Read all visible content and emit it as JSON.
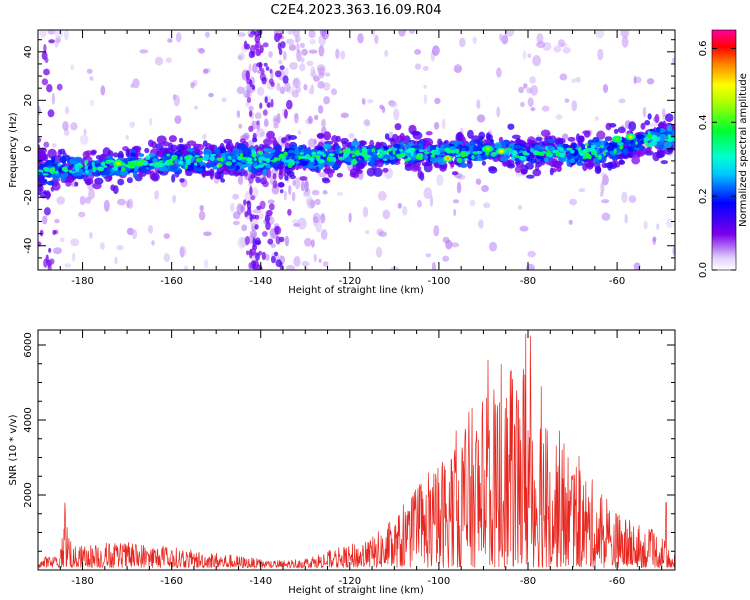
{
  "title": "C2E4.2023.363.16.09.R04",
  "colors": {
    "snr_line": "#e8261f",
    "axis": "#000000"
  },
  "chart_data": [
    {
      "type": "heatmap",
      "xlabel": "Height of straight line (km)",
      "ylabel": "Frequency (Hz)",
      "xlim": [
        -190,
        -47
      ],
      "ylim": [
        -50,
        49
      ],
      "xticks": [
        -180,
        -160,
        -140,
        -120,
        -100,
        -80,
        -60
      ],
      "yticks": [
        -40,
        -20,
        0,
        20,
        40
      ],
      "colorbar": {
        "label": "Normalized spectral amplitude",
        "range": [
          0.0,
          0.65
        ],
        "ticks": [
          0.0,
          0.2,
          0.4,
          0.6
        ],
        "colormap": "rainbow (white-violet-blue-cyan-green-yellow-red-magenta)"
      },
      "band_center_hz": [
        [
          -190,
          -9
        ],
        [
          -180,
          -8
        ],
        [
          -170,
          -7
        ],
        [
          -160,
          -5
        ],
        [
          -150,
          -5
        ],
        [
          -140,
          -4
        ],
        [
          -130,
          -4
        ],
        [
          -120,
          -3
        ],
        [
          -110,
          -2
        ],
        [
          -100,
          -2
        ],
        [
          -90,
          -1
        ],
        [
          -80,
          -2
        ],
        [
          -70,
          -2
        ],
        [
          -60,
          0
        ],
        [
          -50,
          5
        ]
      ],
      "peaks": [
        {
          "x": -172,
          "y": -6,
          "v": 0.48
        },
        {
          "x": -98,
          "y": -4,
          "v": 0.55
        },
        {
          "x": -89,
          "y": 0,
          "v": 0.45
        },
        {
          "x": -86,
          "y": -1,
          "v": 0.5
        },
        {
          "x": -60,
          "y": 4,
          "v": 0.42
        },
        {
          "x": -57,
          "y": 5,
          "v": 0.48
        }
      ]
    },
    {
      "type": "line",
      "xlabel": "Height of straight line (km)",
      "ylabel": "SNR (10 * v/v)",
      "xlim": [
        -190,
        -47
      ],
      "ylim": [
        0,
        6400
      ],
      "xticks": [
        -180,
        -160,
        -140,
        -120,
        -100,
        -80,
        -60
      ],
      "yticks": [
        2000,
        4000,
        6000
      ],
      "envelope": [
        [
          -190,
          300
        ],
        [
          -185,
          400
        ],
        [
          -184,
          1800
        ],
        [
          -182,
          600
        ],
        [
          -175,
          750
        ],
        [
          -165,
          700
        ],
        [
          -160,
          600
        ],
        [
          -155,
          500
        ],
        [
          -150,
          450
        ],
        [
          -145,
          350
        ],
        [
          -140,
          250
        ],
        [
          -135,
          220
        ],
        [
          -130,
          300
        ],
        [
          -125,
          500
        ],
        [
          -120,
          650
        ],
        [
          -115,
          900
        ],
        [
          -110,
          1400
        ],
        [
          -105,
          2300
        ],
        [
          -100,
          3000
        ],
        [
          -95,
          4200
        ],
        [
          -90,
          4900
        ],
        [
          -85,
          5300
        ],
        [
          -82,
          5900
        ],
        [
          -80,
          6300
        ],
        [
          -78,
          5300
        ],
        [
          -75,
          4300
        ],
        [
          -70,
          3300
        ],
        [
          -65,
          2400
        ],
        [
          -60,
          1600
        ],
        [
          -55,
          1200
        ],
        [
          -50,
          1000
        ],
        [
          -48,
          400
        ]
      ],
      "spikes": [
        {
          "x": -184,
          "y": 1800
        },
        {
          "x": -89,
          "y": 5600
        },
        {
          "x": -86,
          "y": 5500
        },
        {
          "x": -84,
          "y": 5300
        },
        {
          "x": -80.5,
          "y": 6300
        },
        {
          "x": -79.5,
          "y": 6250
        },
        {
          "x": -77,
          "y": 4900
        },
        {
          "x": -49,
          "y": 1800
        }
      ]
    }
  ]
}
